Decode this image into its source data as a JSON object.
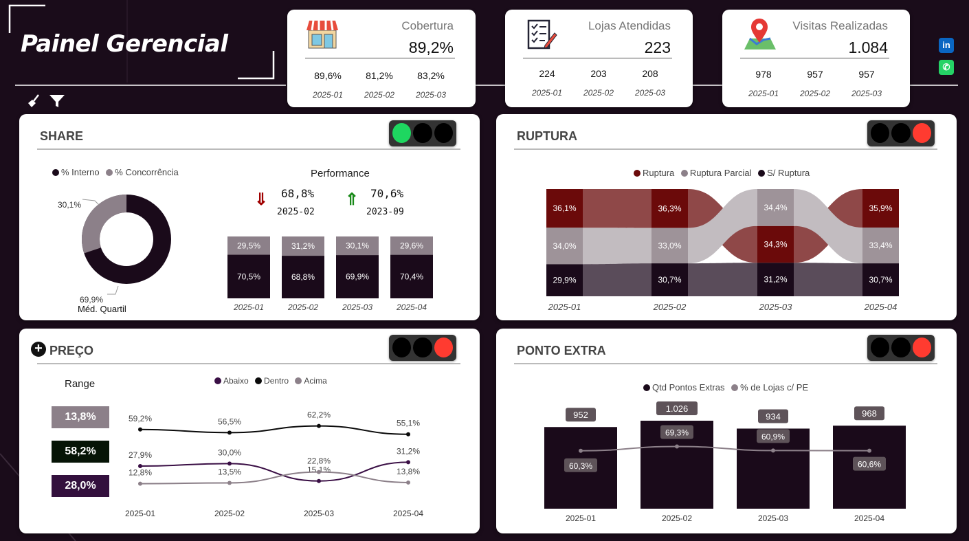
{
  "header": {
    "title": "Painel Gerencial"
  },
  "kpis": [
    {
      "label": "Cobertura",
      "value": "89,2%",
      "icon": "store-icon",
      "cols": [
        {
          "value": "89,6%",
          "month": "2025-01"
        },
        {
          "value": "81,2%",
          "month": "2025-02"
        },
        {
          "value": "83,2%",
          "month": "2025-03"
        }
      ]
    },
    {
      "label": "Lojas Atendidas",
      "value": "223",
      "icon": "checklist-icon",
      "cols": [
        {
          "value": "224",
          "month": "2025-01"
        },
        {
          "value": "203",
          "month": "2025-02"
        },
        {
          "value": "208",
          "month": "2025-03"
        }
      ]
    },
    {
      "label": "Visitas Realizadas",
      "value": "1.084",
      "icon": "map-pin-icon",
      "cols": [
        {
          "value": "978",
          "month": "2025-01"
        },
        {
          "value": "957",
          "month": "2025-02"
        },
        {
          "value": "957",
          "month": "2025-03"
        }
      ]
    }
  ],
  "social": {
    "linkedin": "in",
    "whatsapp": "✆"
  },
  "share": {
    "title": "SHARE",
    "traffic_light": "green",
    "legend": [
      "% Interno",
      "% Concorrência"
    ],
    "donut": {
      "interno": 69.9,
      "concorrencia": 30.1,
      "interno_label": "69,9%",
      "concorrencia_label": "30,1%",
      "caption": "Méd. Quartil"
    },
    "performance": {
      "title": "Performance",
      "down": {
        "value": "68,8%",
        "month": "2025-02"
      },
      "up": {
        "value": "70,6%",
        "month": "2023-09"
      }
    },
    "bars": [
      {
        "month": "2025-01",
        "top": 29.5,
        "bottom": 70.5,
        "top_label": "29,5%",
        "bottom_label": "70,5%"
      },
      {
        "month": "2025-02",
        "top": 31.2,
        "bottom": 68.8,
        "top_label": "31,2%",
        "bottom_label": "68,8%"
      },
      {
        "month": "2025-03",
        "top": 30.1,
        "bottom": 69.9,
        "top_label": "30,1%",
        "bottom_label": "69,9%"
      },
      {
        "month": "2025-04",
        "top": 29.6,
        "bottom": 70.4,
        "top_label": "29,6%",
        "bottom_label": "70,4%"
      }
    ],
    "colors": {
      "interno": "#1a0a1a",
      "concorrencia": "#8c8089"
    }
  },
  "ruptura": {
    "title": "RUPTURA",
    "traffic_light": "red",
    "legend": [
      "Ruptura",
      "Ruptura Parcial",
      "S/ Ruptura"
    ],
    "colors": {
      "ruptura": "#6b0a0a",
      "parcial": "#9e9399",
      "sem": "#1a0a1a"
    },
    "months": [
      "2025-01",
      "2025-02",
      "2025-03",
      "2025-04"
    ],
    "ruptura": [
      36.1,
      36.3,
      34.3,
      35.9
    ],
    "parcial": [
      34.0,
      33.0,
      34.4,
      33.4
    ],
    "sem": [
      29.9,
      30.7,
      31.2,
      30.7
    ],
    "ruptura_labels": [
      "36,1%",
      "36,3%",
      "34,3%",
      "35,9%"
    ],
    "parcial_labels": [
      "34,0%",
      "33,0%",
      "34,4%",
      "33,4%"
    ],
    "sem_labels": [
      "29,9%",
      "30,7%",
      "31,2%",
      "30,7%"
    ]
  },
  "preco": {
    "title": "PREÇO",
    "traffic_light": "red",
    "range_title": "Range",
    "range": [
      {
        "label": "13,8%",
        "color": "#8c8089"
      },
      {
        "label": "58,2%",
        "color": "#061406"
      },
      {
        "label": "28,0%",
        "color": "#33103d"
      }
    ],
    "legend": [
      "Abaixo",
      "Dentro",
      "Acima"
    ],
    "colors": {
      "abaixo": "#3a0f45",
      "dentro": "#0a0a0a",
      "acima": "#8c8089"
    },
    "months": [
      "2025-01",
      "2025-02",
      "2025-03",
      "2025-04"
    ],
    "dentro": [
      59.2,
      56.5,
      62.2,
      55.1
    ],
    "abaixo": [
      27.9,
      30.0,
      15.1,
      31.2
    ],
    "acima": [
      12.8,
      13.5,
      22.8,
      13.8
    ],
    "dentro_labels": [
      "59,2%",
      "56,5%",
      "62,2%",
      "55,1%"
    ],
    "abaixo_labels": [
      "27,9%",
      "30,0%",
      "15,1%",
      "31,2%"
    ],
    "acima_labels": [
      "12,8%",
      "13,5%",
      "22,8%",
      "13,8%"
    ]
  },
  "ponto_extra": {
    "title": "PONTO EXTRA",
    "traffic_light": "red",
    "legend": [
      "Qtd Pontos Extras",
      "% de Lojas c/ PE"
    ],
    "colors": {
      "bar": "#1a0a1a",
      "line": "#8c8089"
    },
    "months": [
      "2025-01",
      "2025-02",
      "2025-03",
      "2025-04"
    ],
    "qtd": [
      952,
      1026,
      934,
      968
    ],
    "qtd_labels": [
      "952",
      "1.026",
      "934",
      "968"
    ],
    "pct": [
      60.3,
      69.3,
      60.9,
      60.6
    ],
    "pct_labels": [
      "60,3%",
      "69,3%",
      "60,9%",
      "60,6%"
    ]
  }
}
